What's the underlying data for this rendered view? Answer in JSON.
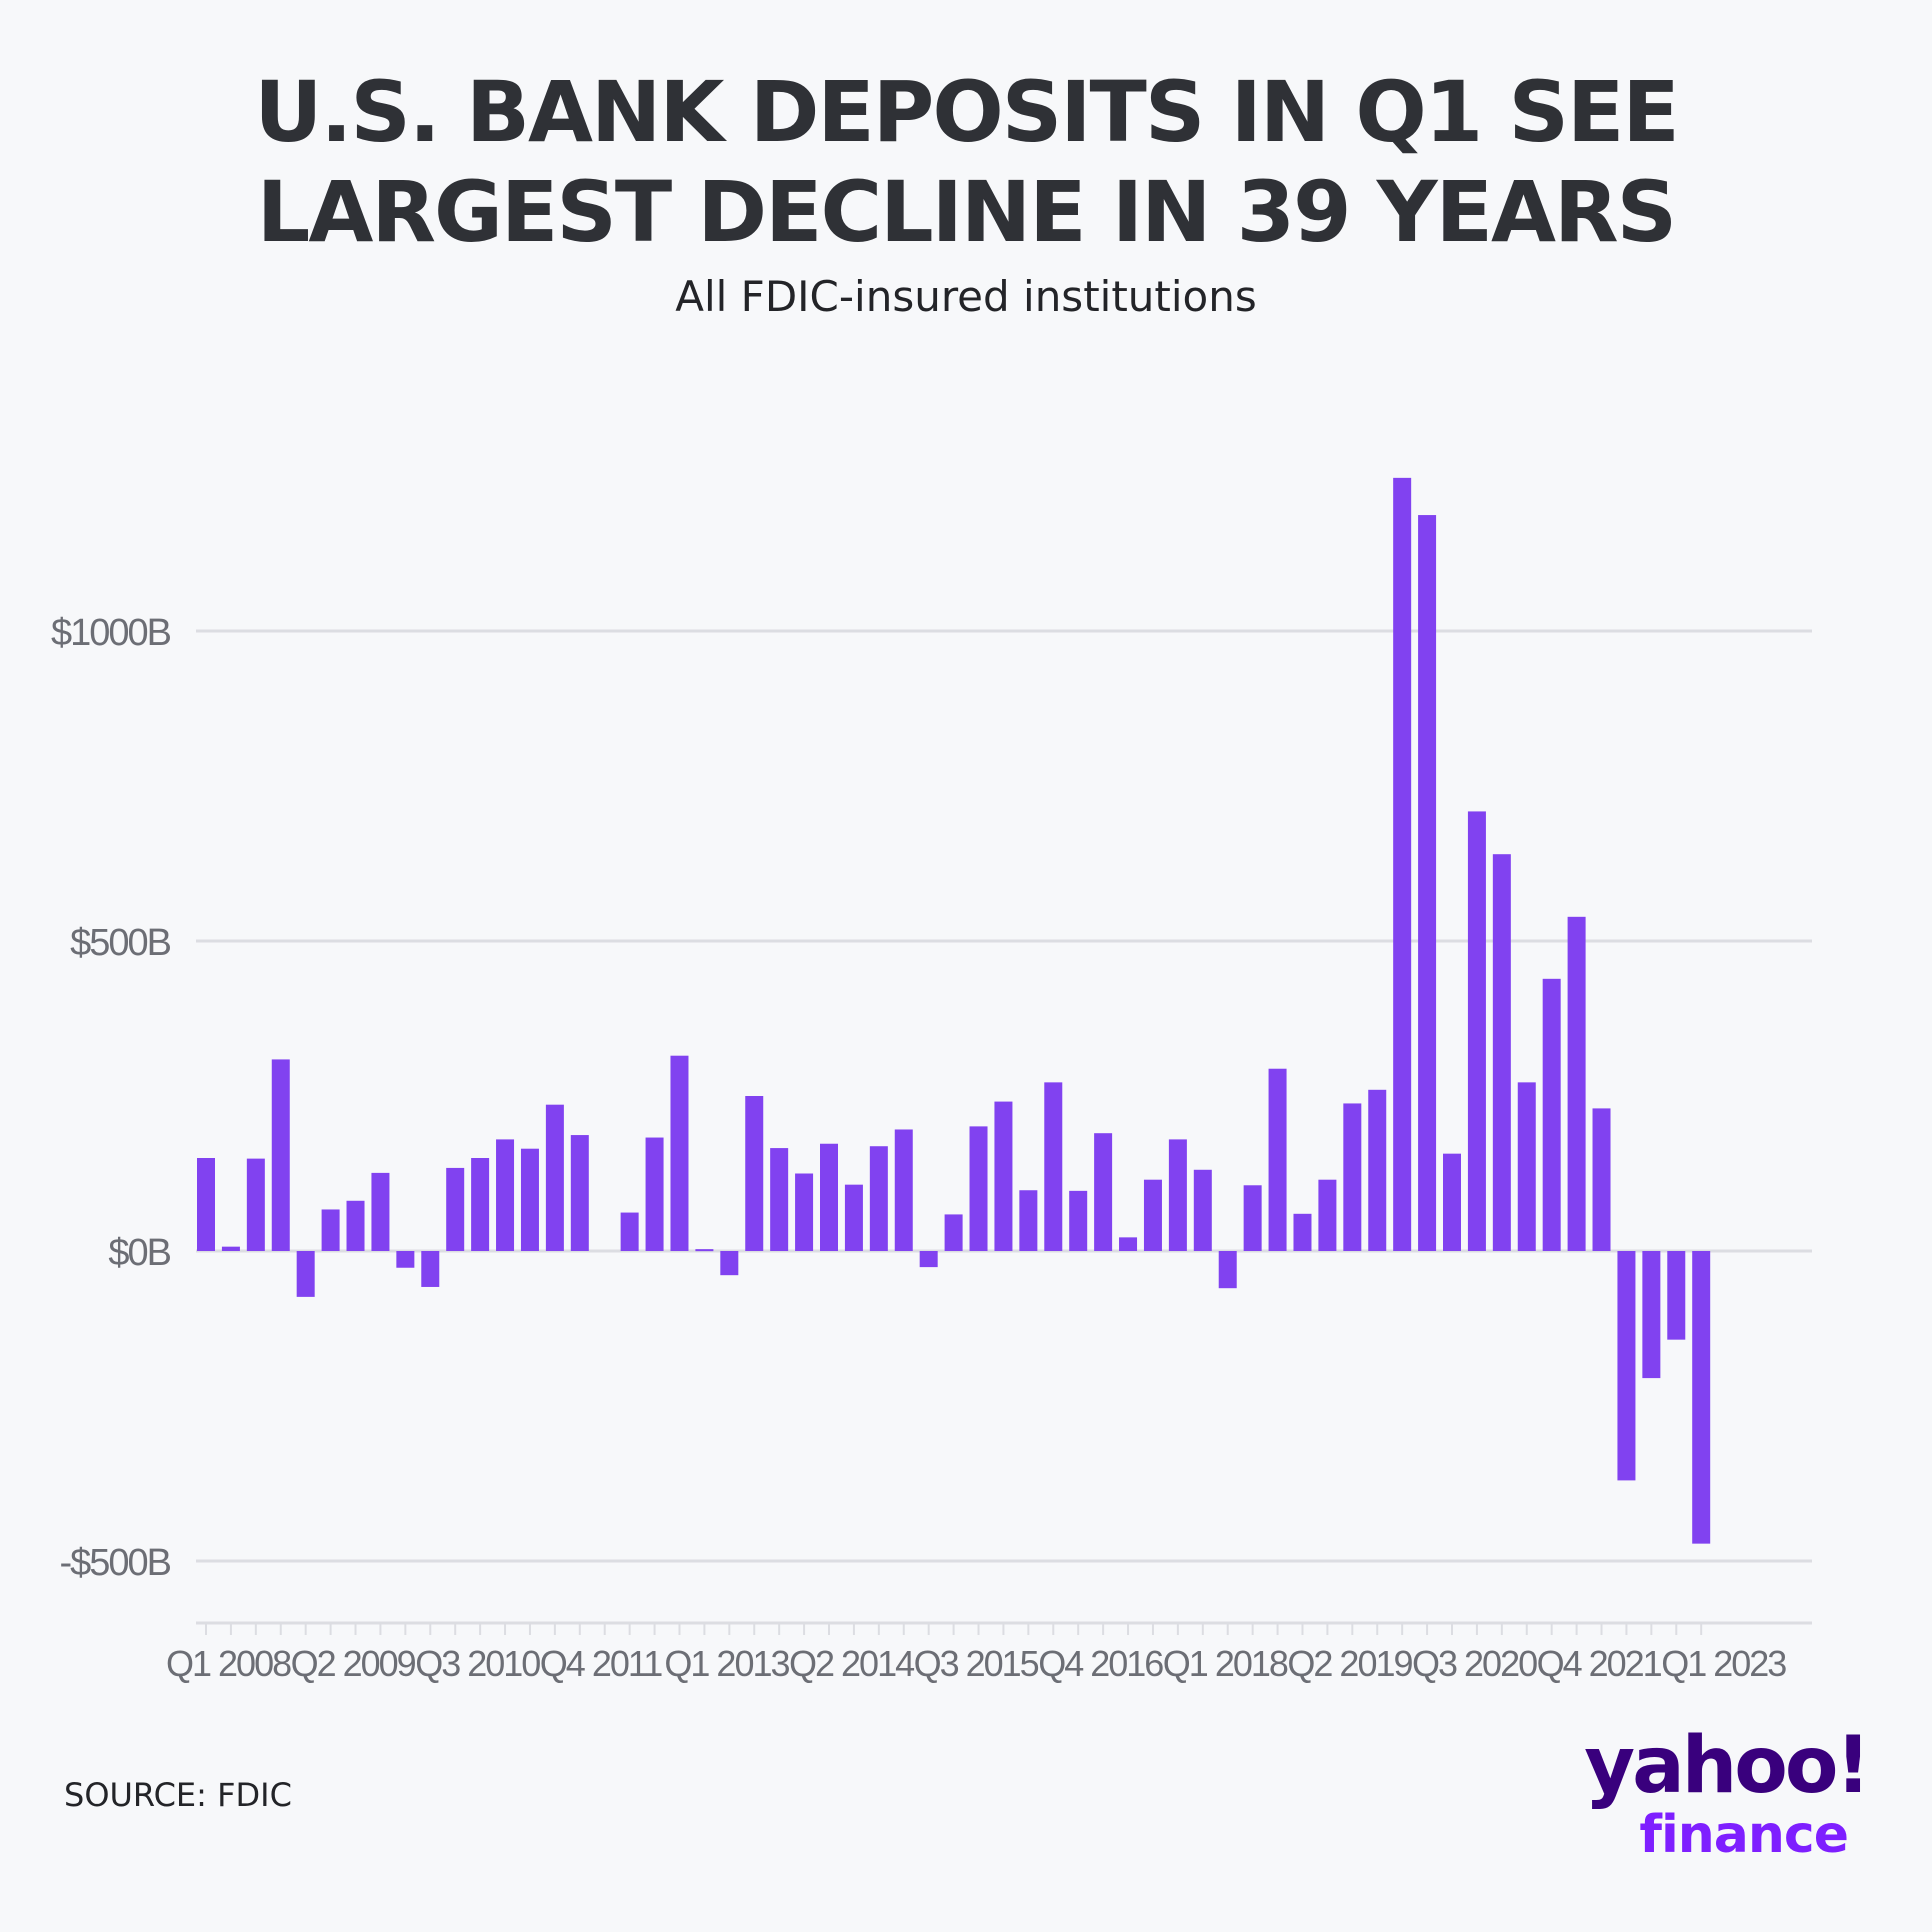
{
  "title_line1": "U.S. BANK DEPOSITS IN Q1 SEE",
  "title_line2": "LARGEST DECLINE IN 39 YEARS",
  "subtitle": "All FDIC-insured institutions",
  "source": "SOURCE: FDIC",
  "logo": {
    "line1": "yahoo!",
    "line2": "finance"
  },
  "colors": {
    "bar": "#8142f0",
    "grid": "#dcdde2",
    "axis_text": "#6c6e75",
    "title": "#2f3136",
    "logo_dark": "#39007d",
    "logo_light": "#7e1fff"
  },
  "chart_data": {
    "type": "bar",
    "title": "U.S. BANK DEPOSITS IN Q1 SEE LARGEST DECLINE IN 39 YEARS",
    "subtitle": "All FDIC-insured institutions",
    "xlabel": "",
    "ylabel": "",
    "ylim": [
      -600,
      1300
    ],
    "yticks": [
      -500,
      0,
      500,
      1000
    ],
    "ytick_labels": [
      "-$500B",
      "$0B",
      "$500B",
      "$1000B"
    ],
    "grid": true,
    "categories": [
      "Q1 2008",
      "Q2 2008",
      "Q3 2008",
      "Q4 2008",
      "Q1 2009",
      "Q2 2009",
      "Q3 2009",
      "Q4 2009",
      "Q1 2010",
      "Q2 2010",
      "Q3 2010",
      "Q4 2010",
      "Q1 2011",
      "Q2 2011",
      "Q3 2011",
      "Q4 2011",
      "Q1 2012",
      "Q2 2012",
      "Q3 2012",
      "Q4 2012",
      "Q1 2013",
      "Q2 2013",
      "Q3 2013",
      "Q4 2013",
      "Q1 2014",
      "Q2 2014",
      "Q3 2014",
      "Q4 2014",
      "Q1 2015",
      "Q2 2015",
      "Q3 2015",
      "Q4 2015",
      "Q1 2016",
      "Q2 2016",
      "Q3 2016",
      "Q4 2016",
      "Q1 2017",
      "Q2 2017",
      "Q3 2017",
      "Q4 2017",
      "Q1 2018",
      "Q2 2018",
      "Q3 2018",
      "Q4 2018",
      "Q1 2019",
      "Q2 2019",
      "Q3 2019",
      "Q4 2019",
      "Q1 2020",
      "Q2 2020",
      "Q3 2020",
      "Q4 2020",
      "Q1 2021",
      "Q2 2021",
      "Q3 2021",
      "Q4 2021",
      "Q1 2022",
      "Q2 2022",
      "Q3 2022",
      "Q4 2022",
      "Q1 2023"
    ],
    "values": [
      150,
      7,
      149,
      309,
      -74,
      67,
      81,
      126,
      -27,
      -58,
      134,
      150,
      180,
      165,
      236,
      187,
      0,
      62,
      183,
      315,
      3,
      -39,
      250,
      166,
      125,
      173,
      107,
      169,
      196,
      -26,
      59,
      201,
      241,
      98,
      272,
      97,
      190,
      22,
      115,
      180,
      131,
      -60,
      106,
      294,
      60,
      115,
      238,
      260,
      1247,
      1187,
      157,
      709,
      640,
      272,
      439,
      539,
      230,
      -370,
      -205,
      -143,
      -472
    ],
    "xtick_labels": [
      "Q1 2008",
      "Q2 2009",
      "Q3 2010",
      "Q4 2011",
      "Q1 2013",
      "Q2 2014",
      "Q3 2015",
      "Q4 2016",
      "Q1 2018",
      "Q2 2019",
      "Q3 2020",
      "Q4 2021",
      "Q1 2023"
    ]
  }
}
